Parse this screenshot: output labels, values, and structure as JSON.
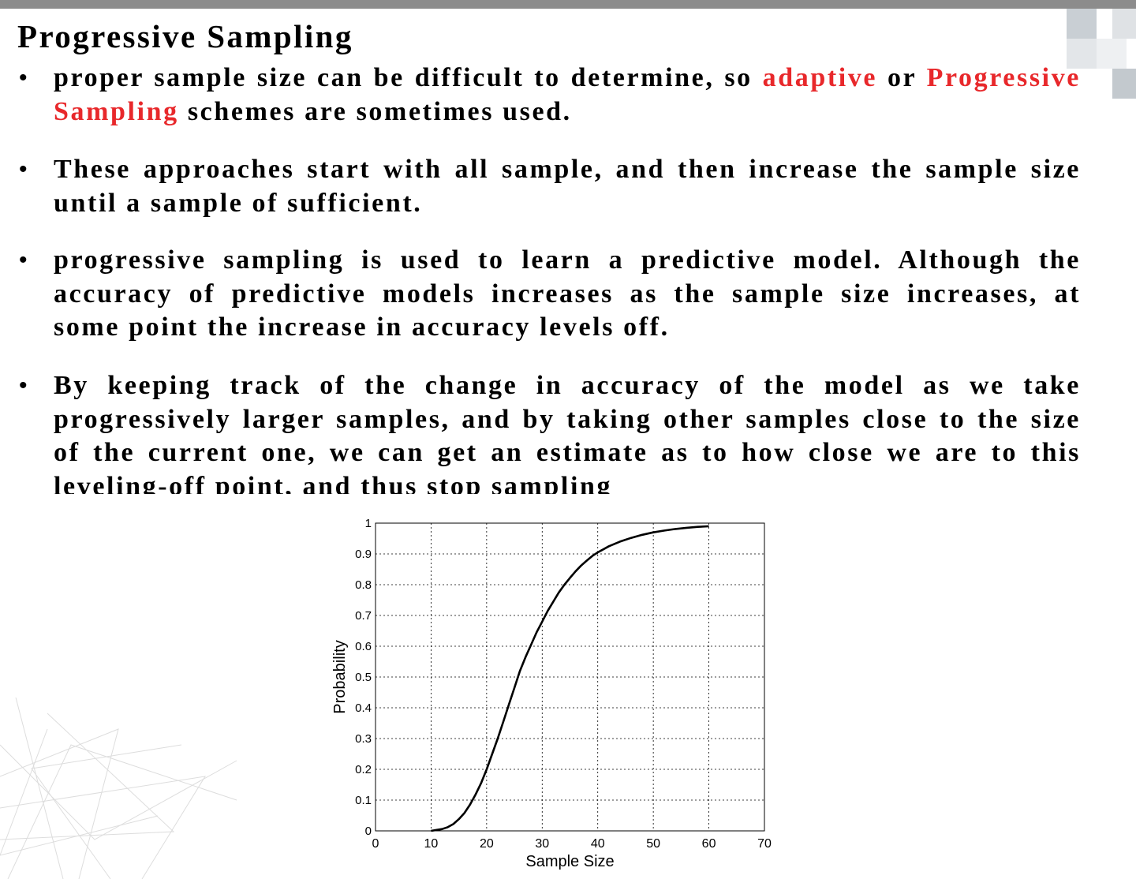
{
  "slide": {
    "title": "Progressive Sampling",
    "bullets": [
      {
        "parts": [
          {
            "text": "proper sample size can be difficult to determine, so ",
            "color": "black"
          },
          {
            "text": "adaptive",
            "color": "red"
          },
          {
            "text": " or ",
            "color": "black"
          },
          {
            "text": "Progressive Sampling",
            "color": "red"
          },
          {
            "text": " schemes are sometimes used.",
            "color": "black"
          }
        ]
      },
      {
        "parts": [
          {
            "text": "These approaches start with all sample, and then increase the sample size until a sample of sufficient.",
            "color": "black"
          }
        ]
      },
      {
        "parts": [
          {
            "text": "progressive sampling is used to learn a predictive model. Although the accuracy of predictive models increases as the sample size increases, at some point the increase in accuracy levels off.",
            "color": "black"
          }
        ]
      },
      {
        "parts": [
          {
            "text": "By keeping track of the change in accuracy of the model as we take progressively larger samples, and by taking other samples close to the size of the current one, we can get an estimate as to how close we are to this leveling-off point, and thus stop sampling",
            "color": "black"
          }
        ]
      }
    ],
    "colors": {
      "highlight": "#e8282b",
      "top_bar": "#8c8c8c"
    }
  },
  "chart_data": {
    "type": "line",
    "xlabel": "Sample Size",
    "ylabel": "Probability",
    "xlim": [
      0,
      70
    ],
    "ylim": [
      0,
      1
    ],
    "xticks": [
      "0",
      "10",
      "20",
      "30",
      "40",
      "50",
      "60",
      "70"
    ],
    "yticks": [
      "0",
      "0.1",
      "0.2",
      "0.3",
      "0.4",
      "0.5",
      "0.6",
      "0.7",
      "0.8",
      "0.9",
      "1"
    ],
    "grid": true,
    "series": [
      {
        "x": [
          10,
          11,
          12,
          13,
          14,
          15,
          16,
          17,
          18,
          19,
          20,
          21,
          22,
          23,
          24,
          25,
          26,
          27,
          28,
          29,
          30,
          31,
          32,
          33,
          34,
          35,
          36,
          37,
          38,
          39,
          40,
          42,
          44,
          46,
          48,
          50,
          52,
          54,
          56,
          58,
          60
        ],
        "y": [
          0.0,
          0.003,
          0.006,
          0.012,
          0.022,
          0.038,
          0.058,
          0.085,
          0.118,
          0.155,
          0.2,
          0.25,
          0.3,
          0.355,
          0.41,
          0.465,
          0.52,
          0.565,
          0.605,
          0.645,
          0.68,
          0.715,
          0.745,
          0.775,
          0.8,
          0.822,
          0.843,
          0.862,
          0.878,
          0.893,
          0.905,
          0.925,
          0.94,
          0.952,
          0.962,
          0.97,
          0.976,
          0.981,
          0.985,
          0.988,
          0.99
        ]
      }
    ]
  }
}
